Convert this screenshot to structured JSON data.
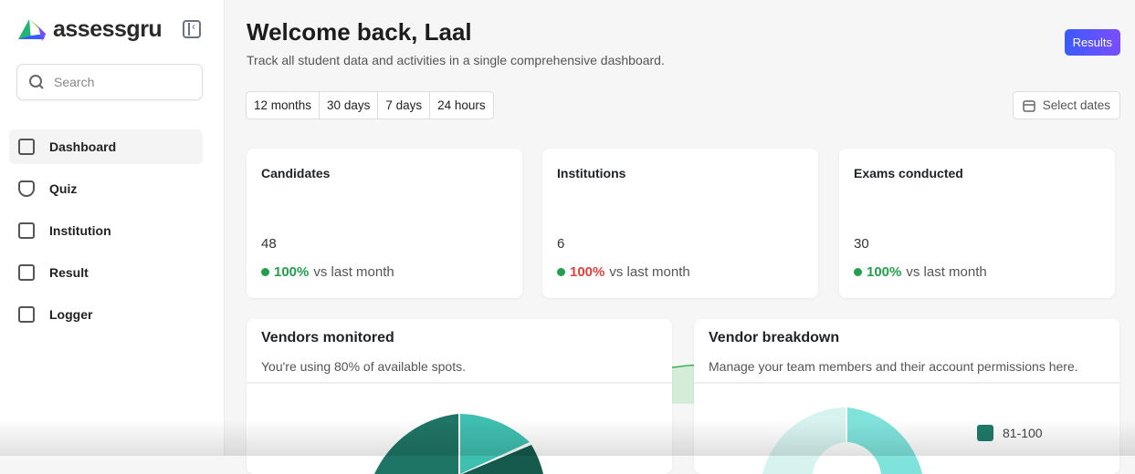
{
  "app": {
    "name": "assessgru"
  },
  "sidebar": {
    "search_placeholder": "Search",
    "items": [
      {
        "label": "Dashboard",
        "icon": "bar-chart-icon"
      },
      {
        "label": "Quiz",
        "icon": "shield-icon"
      },
      {
        "label": "Institution",
        "icon": "building-icon"
      },
      {
        "label": "Result",
        "icon": "table-icon"
      },
      {
        "label": "Logger",
        "icon": "file-check-icon"
      }
    ]
  },
  "header": {
    "title": "Welcome back, Laal",
    "subtitle": "Track all student data and activities in a single comprehensive dashboard.",
    "results_label": "Results"
  },
  "filters": {
    "tabs": [
      "12 months",
      "30 days",
      "7 days",
      "24 hours"
    ],
    "select_dates": "Select dates"
  },
  "stats": [
    {
      "title": "Candidates",
      "value": "48",
      "change": "100%",
      "change_color": "#22a04b",
      "suffix": "vs last month"
    },
    {
      "title": "Institutions",
      "value": "6",
      "change": "100%",
      "change_color": "#e0413a",
      "suffix": "vs last month"
    },
    {
      "title": "Exams conducted",
      "value": "30",
      "change": "100%",
      "change_color": "#22a04b",
      "suffix": "vs last month"
    }
  ],
  "vendors_monitored": {
    "title": "Vendors monitored",
    "subtitle": "You're using 80% of available spots."
  },
  "vendor_breakdown": {
    "title": "Vendor breakdown",
    "subtitle": "Manage your team members and their account permissions here.",
    "legend": [
      {
        "label": "81-100",
        "color": "#1f7a6a"
      }
    ]
  }
}
